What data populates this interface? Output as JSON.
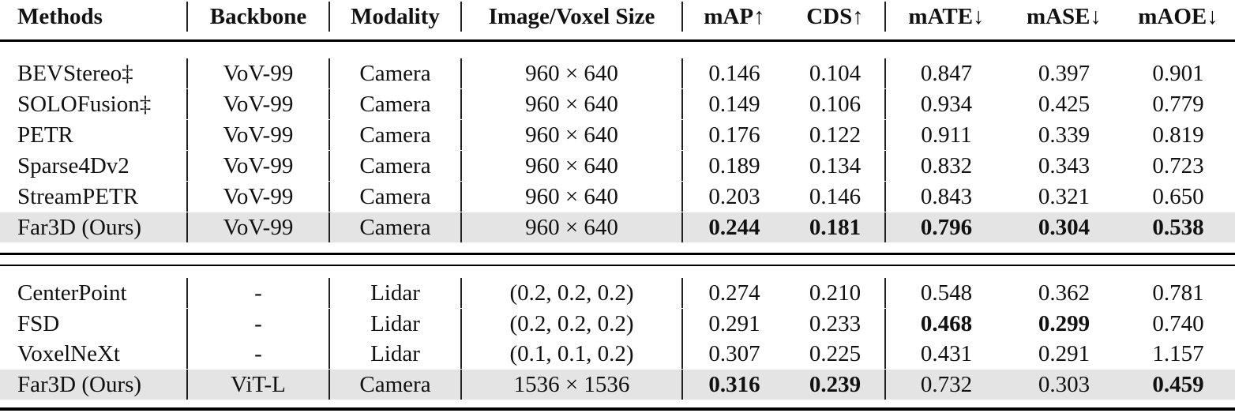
{
  "table": {
    "header": [
      "Methods",
      "Backbone",
      "Modality",
      "Image/Voxel Size",
      "mAP↑",
      "CDS↑",
      "mATE↓",
      "mASE↓",
      "mAOE↓"
    ],
    "groups": [
      {
        "rows": [
          {
            "cells": [
              "BEVStereo‡",
              "VoV-99",
              "Camera",
              "960 × 640",
              "0.146",
              "0.104",
              "0.847",
              "0.397",
              "0.901"
            ]
          },
          {
            "cells": [
              "SOLOFusion‡",
              "VoV-99",
              "Camera",
              "960 × 640",
              "0.149",
              "0.106",
              "0.934",
              "0.425",
              "0.779"
            ]
          },
          {
            "cells": [
              "PETR",
              "VoV-99",
              "Camera",
              "960 × 640",
              "0.176",
              "0.122",
              "0.911",
              "0.339",
              "0.819"
            ]
          },
          {
            "cells": [
              "Sparse4Dv2",
              "VoV-99",
              "Camera",
              "960 × 640",
              "0.189",
              "0.134",
              "0.832",
              "0.343",
              "0.723"
            ]
          },
          {
            "cells": [
              "StreamPETR",
              "VoV-99",
              "Camera",
              "960 × 640",
              "0.203",
              "0.146",
              "0.843",
              "0.321",
              "0.650"
            ]
          },
          {
            "cells": [
              "Far3D (Ours)",
              "VoV-99",
              "Camera",
              "960 × 640",
              "0.244",
              "0.181",
              "0.796",
              "0.304",
              "0.538"
            ],
            "bold": [
              4,
              5,
              6,
              7,
              8
            ],
            "shaded": true
          }
        ]
      },
      {
        "rows": [
          {
            "cells": [
              "CenterPoint",
              "-",
              "Lidar",
              "(0.2, 0.2, 0.2)",
              "0.274",
              "0.210",
              "0.548",
              "0.362",
              "0.781"
            ]
          },
          {
            "cells": [
              "FSD",
              "-",
              "Lidar",
              "(0.2, 0.2, 0.2)",
              "0.291",
              "0.233",
              "0.468",
              "0.299",
              "0.740"
            ],
            "bold": [
              6,
              7
            ]
          },
          {
            "cells": [
              "VoxelNeXt",
              "-",
              "Lidar",
              "(0.1, 0.1, 0.2)",
              "0.307",
              "0.225",
              "0.431",
              "0.291",
              "1.157"
            ]
          },
          {
            "cells": [
              "Far3D (Ours)",
              "ViT-L",
              "Camera",
              "1536 × 1536",
              "0.316",
              "0.239",
              "0.732",
              "0.303",
              "0.459"
            ],
            "bold": [
              4,
              5,
              8
            ],
            "shaded": true
          }
        ]
      }
    ]
  }
}
